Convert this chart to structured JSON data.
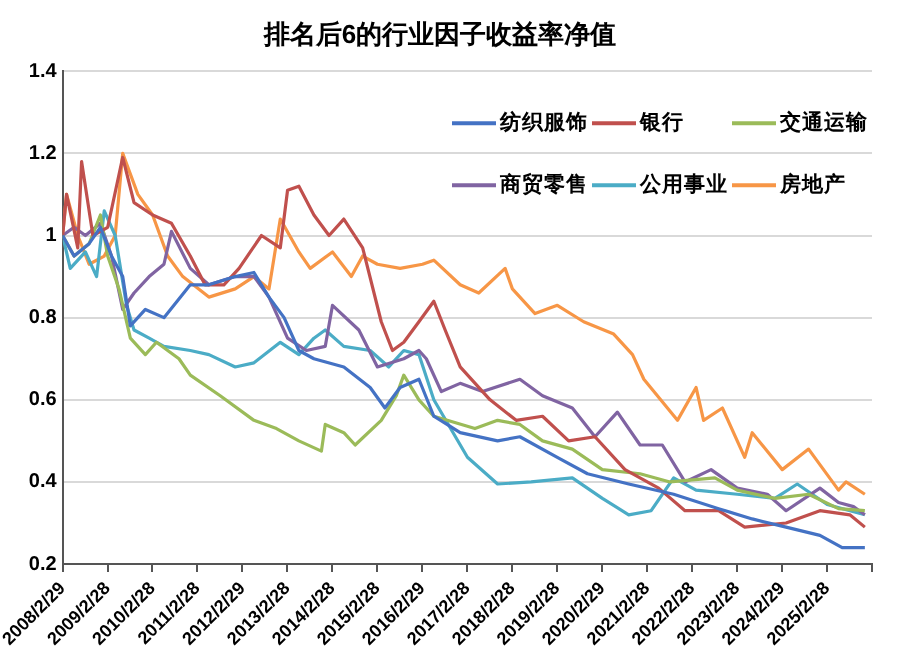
{
  "chart_data": {
    "type": "line",
    "title": "排名后6的行业因子收益率净值",
    "xlim": [
      "2008-02-29",
      "2026-02-28"
    ],
    "ylim": [
      0.2,
      1.4
    ],
    "yticks": [
      0.2,
      0.4,
      0.6,
      0.8,
      1,
      1.2,
      1.4
    ],
    "xticks": [
      {
        "value": "2008-02-29",
        "label": "2008/2/29"
      },
      {
        "value": "2009-02-28",
        "label": "2009/2/28"
      },
      {
        "value": "2010-02-28",
        "label": "2010/2/28"
      },
      {
        "value": "2011-02-28",
        "label": "2011/2/28"
      },
      {
        "value": "2012-02-29",
        "label": "2012/2/29"
      },
      {
        "value": "2013-02-28",
        "label": "2013/2/28"
      },
      {
        "value": "2014-02-28",
        "label": "2014/2/28"
      },
      {
        "value": "2015-02-28",
        "label": "2015/2/28"
      },
      {
        "value": "2016-02-29",
        "label": "2016/2/29"
      },
      {
        "value": "2017-02-28",
        "label": "2017/2/28"
      },
      {
        "value": "2018-02-28",
        "label": "2018/2/28"
      },
      {
        "value": "2019-02-28",
        "label": "2019/2/28"
      },
      {
        "value": "2020-02-29",
        "label": "2020/2/29"
      },
      {
        "value": "2021-02-28",
        "label": "2021/2/28"
      },
      {
        "value": "2022-02-28",
        "label": "2022/2/28"
      },
      {
        "value": "2023-02-28",
        "label": "2023/2/28"
      },
      {
        "value": "2024-02-29",
        "label": "2024/2/29"
      },
      {
        "value": "2025-02-28",
        "label": "2025/2/28"
      },
      {
        "value": "2026-02-28",
        "label": null
      }
    ],
    "grid": "y",
    "legend": "top right",
    "marker": "none",
    "line_style": "solid",
    "series": [
      {
        "name": "纺织服饰",
        "color": "#4472c4",
        "x": [
          "2008-02-29",
          "2008-06",
          "2008-10",
          "2009-01",
          "2009-04",
          "2009-07",
          "2009-09",
          "2010-01",
          "2010-06",
          "2011-01",
          "2011-06",
          "2012-01",
          "2012-06",
          "2012-10",
          "2013-02",
          "2013-06",
          "2013-10",
          "2014-06",
          "2015-01",
          "2015-05",
          "2015-09",
          "2016-02",
          "2016-06",
          "2017-01",
          "2017-11",
          "2018-05",
          "2019-03",
          "2019-11",
          "2020-10",
          "2021-10",
          "2022-10",
          "2023-07",
          "2024-04",
          "2025-01",
          "2025-07",
          "2026-01"
        ],
        "values": [
          1.0,
          0.95,
          0.98,
          1.02,
          0.95,
          0.9,
          0.78,
          0.82,
          0.8,
          0.88,
          0.88,
          0.9,
          0.91,
          0.85,
          0.8,
          0.72,
          0.7,
          0.68,
          0.63,
          0.58,
          0.63,
          0.65,
          0.56,
          0.52,
          0.5,
          0.51,
          0.46,
          0.42,
          0.395,
          0.37,
          0.335,
          0.31,
          0.29,
          0.27,
          0.24,
          0.24
        ]
      },
      {
        "name": "银行",
        "color": "#c0504d",
        "x": [
          "2008-02-29",
          "2008-04",
          "2008-07",
          "2008-08",
          "2008-11",
          "2009-03",
          "2009-07",
          "2009-10",
          "2010-03",
          "2010-08",
          "2011-01",
          "2011-05",
          "2011-10",
          "2012-02",
          "2012-08",
          "2013-01",
          "2013-03",
          "2013-06",
          "2013-10",
          "2014-02",
          "2014-06",
          "2014-11",
          "2015-04",
          "2015-07",
          "2015-10",
          "2016-02",
          "2016-06",
          "2016-09",
          "2017-01",
          "2017-09",
          "2018-04",
          "2018-11",
          "2019-06",
          "2020-01",
          "2020-09",
          "2021-06",
          "2022-01",
          "2022-10",
          "2023-05",
          "2024-04",
          "2025-01",
          "2025-09",
          "2026-01"
        ],
        "values": [
          1.0,
          1.1,
          0.97,
          1.18,
          1.0,
          1.02,
          1.19,
          1.08,
          1.05,
          1.03,
          0.95,
          0.88,
          0.88,
          0.92,
          1.0,
          0.97,
          1.11,
          1.12,
          1.05,
          1.0,
          1.04,
          0.97,
          0.79,
          0.72,
          0.74,
          0.79,
          0.84,
          0.77,
          0.68,
          0.6,
          0.55,
          0.56,
          0.5,
          0.51,
          0.43,
          0.385,
          0.33,
          0.33,
          0.29,
          0.3,
          0.33,
          0.32,
          0.29
        ]
      },
      {
        "name": "交通运输",
        "color": "#9bbb59",
        "x": [
          "2008-02-29",
          "2008-06",
          "2008-10",
          "2009-01",
          "2009-03",
          "2009-06",
          "2009-09",
          "2010-01",
          "2010-04",
          "2010-10",
          "2011-01",
          "2011-09",
          "2012-06",
          "2012-12",
          "2013-06",
          "2013-12",
          "2014-01",
          "2014-06",
          "2014-09",
          "2015-04",
          "2015-08",
          "2015-10",
          "2016-02",
          "2016-06",
          "2017-05",
          "2017-11",
          "2018-05",
          "2018-11",
          "2019-07",
          "2020-03",
          "2021-01",
          "2021-09",
          "2022-09",
          "2023-03",
          "2024-01",
          "2024-10",
          "2025-06",
          "2026-01"
        ],
        "values": [
          1.0,
          0.95,
          0.98,
          1.05,
          0.95,
          0.87,
          0.75,
          0.71,
          0.74,
          0.7,
          0.66,
          0.61,
          0.55,
          0.53,
          0.5,
          0.475,
          0.54,
          0.52,
          0.49,
          0.55,
          0.61,
          0.66,
          0.6,
          0.56,
          0.53,
          0.55,
          0.54,
          0.5,
          0.48,
          0.43,
          0.42,
          0.4,
          0.41,
          0.38,
          0.36,
          0.37,
          0.335,
          0.33
        ]
      },
      {
        "name": "商贸零售",
        "color": "#8064a2",
        "x": [
          "2008-02-29",
          "2008-06",
          "2008-09",
          "2009-01",
          "2009-04",
          "2009-07",
          "2009-10",
          "2010-02",
          "2010-06",
          "2010-08",
          "2011-01",
          "2011-06",
          "2012-01",
          "2012-06",
          "2012-10",
          "2013-03",
          "2013-08",
          "2014-01",
          "2014-03",
          "2014-10",
          "2015-03",
          "2015-10",
          "2016-02",
          "2016-04",
          "2016-08",
          "2017-01",
          "2017-07",
          "2018-05",
          "2018-11",
          "2019-07",
          "2020-01",
          "2020-07",
          "2021-01",
          "2021-07",
          "2022-01",
          "2022-08",
          "2023-03",
          "2023-11",
          "2024-04",
          "2025-01",
          "2025-06",
          "2025-10",
          "2026-01"
        ],
        "values": [
          1.0,
          1.02,
          1.0,
          1.03,
          0.95,
          0.82,
          0.86,
          0.9,
          0.93,
          1.01,
          0.92,
          0.88,
          0.9,
          0.9,
          0.85,
          0.75,
          0.72,
          0.73,
          0.83,
          0.77,
          0.68,
          0.7,
          0.72,
          0.7,
          0.62,
          0.64,
          0.62,
          0.65,
          0.61,
          0.58,
          0.51,
          0.57,
          0.49,
          0.49,
          0.4,
          0.43,
          0.385,
          0.37,
          0.33,
          0.385,
          0.35,
          0.34,
          0.32
        ]
      },
      {
        "name": "公用事业",
        "color": "#4bacc6",
        "x": [
          "2008-02-29",
          "2008-05",
          "2008-09",
          "2008-12",
          "2009-02",
          "2009-05",
          "2009-08",
          "2009-10",
          "2010-02",
          "2010-06",
          "2011-01",
          "2011-06",
          "2012-01",
          "2012-06",
          "2013-01",
          "2013-06",
          "2013-10",
          "2014-01",
          "2014-06",
          "2015-01",
          "2015-06",
          "2015-10",
          "2016-02",
          "2016-06",
          "2017-03",
          "2017-11",
          "2018-08",
          "2019-07",
          "2020-03",
          "2020-10",
          "2021-04",
          "2021-10",
          "2022-04",
          "2023-03",
          "2024-01",
          "2024-07",
          "2025-03",
          "2026-01"
        ],
        "values": [
          1.0,
          0.92,
          0.96,
          0.9,
          1.06,
          1.0,
          0.83,
          0.77,
          0.75,
          0.73,
          0.72,
          0.71,
          0.68,
          0.69,
          0.74,
          0.71,
          0.75,
          0.77,
          0.73,
          0.72,
          0.68,
          0.72,
          0.71,
          0.6,
          0.46,
          0.395,
          0.4,
          0.41,
          0.36,
          0.32,
          0.33,
          0.41,
          0.38,
          0.37,
          0.36,
          0.395,
          0.345,
          0.32
        ]
      },
      {
        "name": "房地产",
        "color": "#f79646",
        "x": [
          "2008-02-29",
          "2008-04",
          "2008-07",
          "2008-10",
          "2009-02",
          "2009-05",
          "2009-07",
          "2009-11",
          "2010-03",
          "2010-07",
          "2010-11",
          "2011-06",
          "2012-01",
          "2012-06",
          "2012-10",
          "2013-01",
          "2013-06",
          "2013-09",
          "2014-03",
          "2014-08",
          "2014-11",
          "2015-03",
          "2015-09",
          "2016-03",
          "2016-06",
          "2017-01",
          "2017-06",
          "2018-01",
          "2018-03",
          "2018-09",
          "2019-03",
          "2019-10",
          "2020-06",
          "2020-11",
          "2021-02",
          "2021-11",
          "2022-04",
          "2022-06",
          "2022-11",
          "2023-05",
          "2023-07",
          "2024-03",
          "2024-10",
          "2025-06",
          "2025-08",
          "2026-01"
        ],
        "values": [
          1.0,
          1.1,
          1.0,
          0.93,
          0.95,
          1.0,
          1.2,
          1.1,
          1.05,
          0.95,
          0.9,
          0.85,
          0.87,
          0.9,
          0.87,
          1.04,
          0.96,
          0.92,
          0.96,
          0.9,
          0.95,
          0.93,
          0.92,
          0.93,
          0.94,
          0.88,
          0.86,
          0.92,
          0.87,
          0.81,
          0.83,
          0.79,
          0.76,
          0.71,
          0.65,
          0.55,
          0.63,
          0.55,
          0.58,
          0.46,
          0.52,
          0.43,
          0.48,
          0.38,
          0.4,
          0.37
        ]
      }
    ]
  }
}
